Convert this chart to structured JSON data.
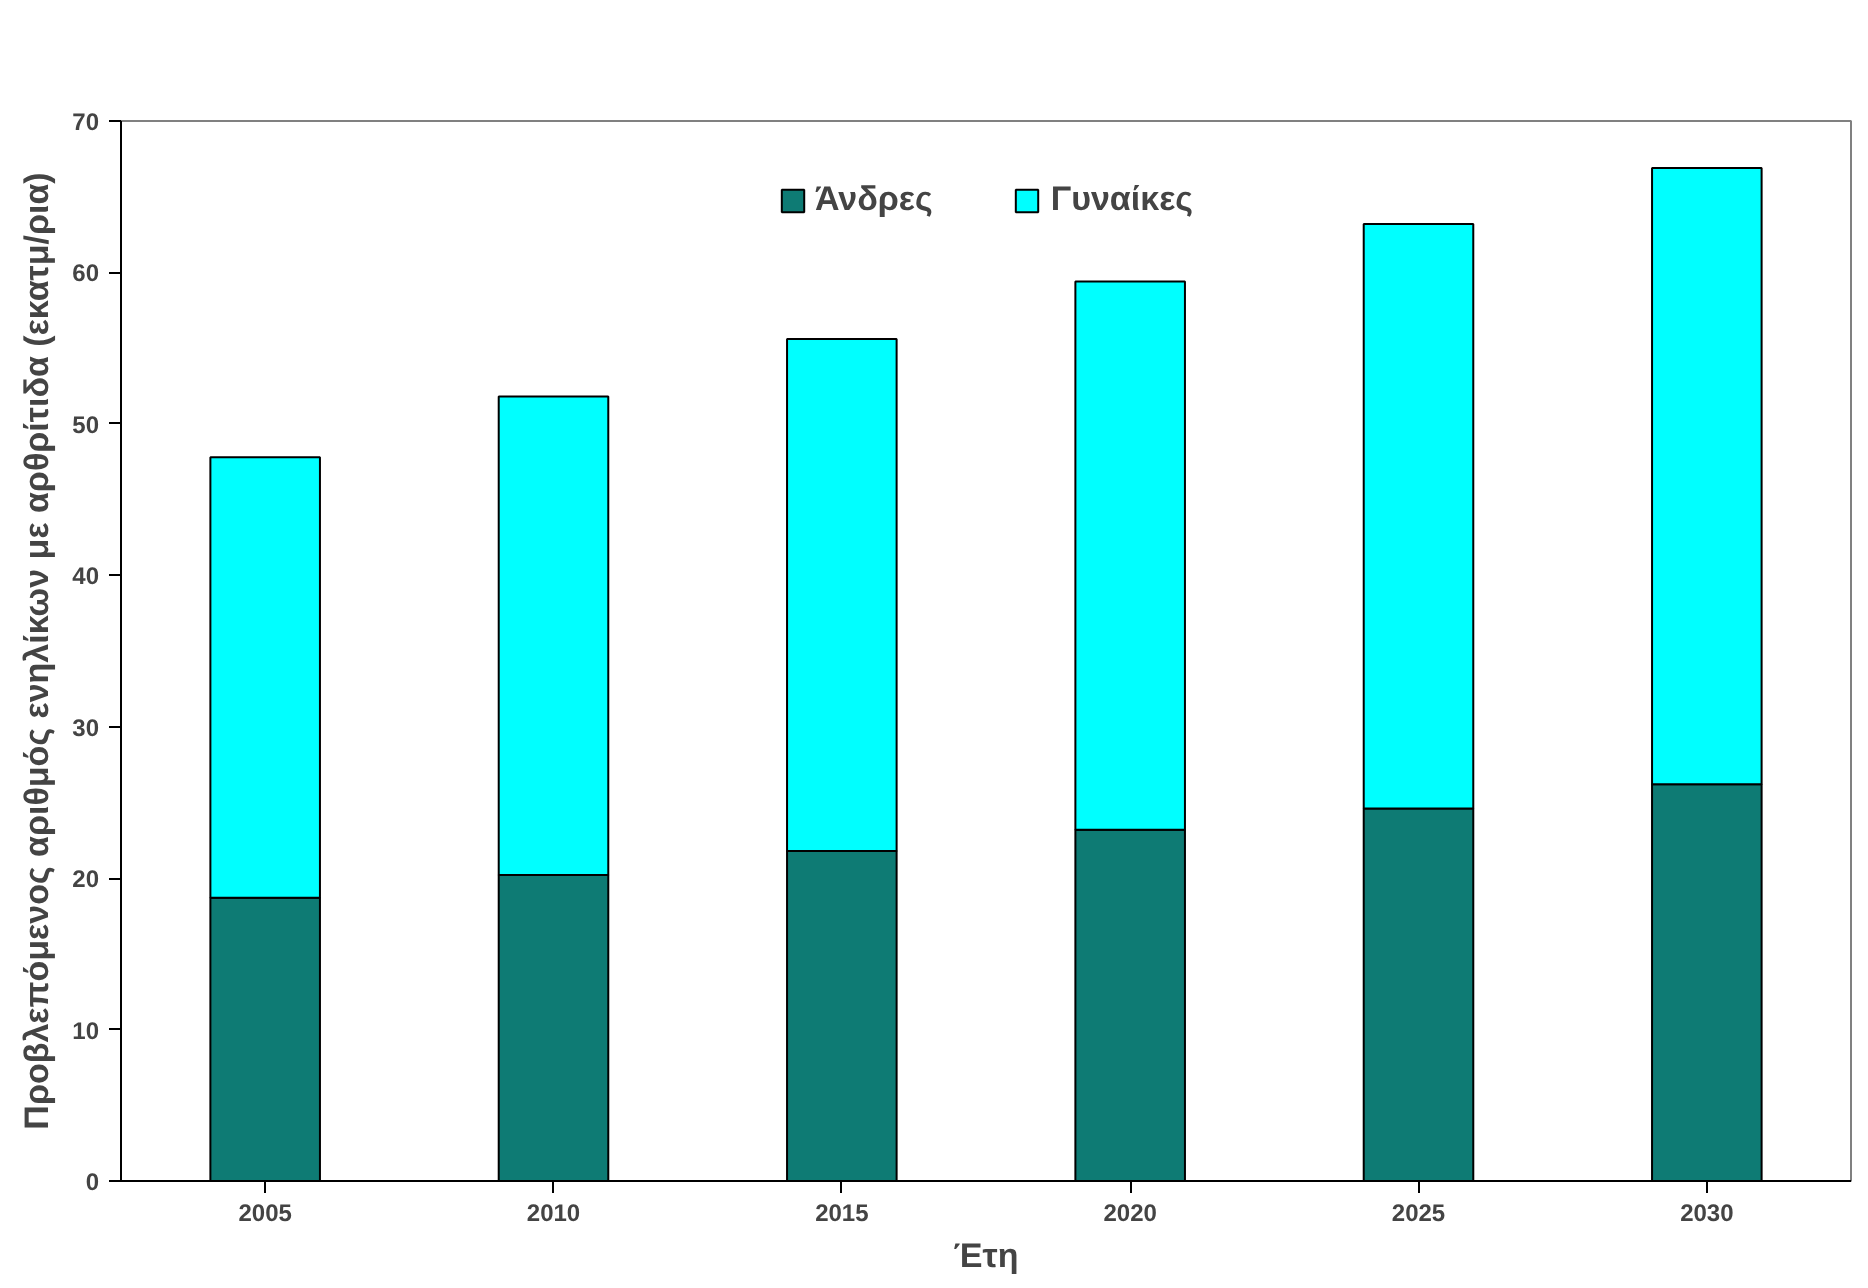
{
  "chart_data": {
    "type": "bar",
    "stacked": true,
    "categories": [
      "2005",
      "2010",
      "2015",
      "2020",
      "2025",
      "2030"
    ],
    "series": [
      {
        "name": "Άνδρες",
        "color": "#0e7b74",
        "values": [
          18.7,
          20.2,
          21.8,
          23.2,
          24.6,
          26.2
        ]
      },
      {
        "name": "Γυναίκες",
        "color": "#00ffff",
        "values": [
          29.1,
          31.6,
          33.8,
          36.2,
          38.6,
          40.7
        ]
      }
    ],
    "xlabel": "Έτη",
    "ylabel": "Προβλεπόμενος αριθμός ενηλίκων με αρθρίτιδα (εκατμ/ρια)",
    "ylim": [
      0,
      70
    ],
    "yticks": [
      0,
      10,
      20,
      30,
      40,
      50,
      60,
      70
    ],
    "grid": false,
    "legend": "top"
  }
}
